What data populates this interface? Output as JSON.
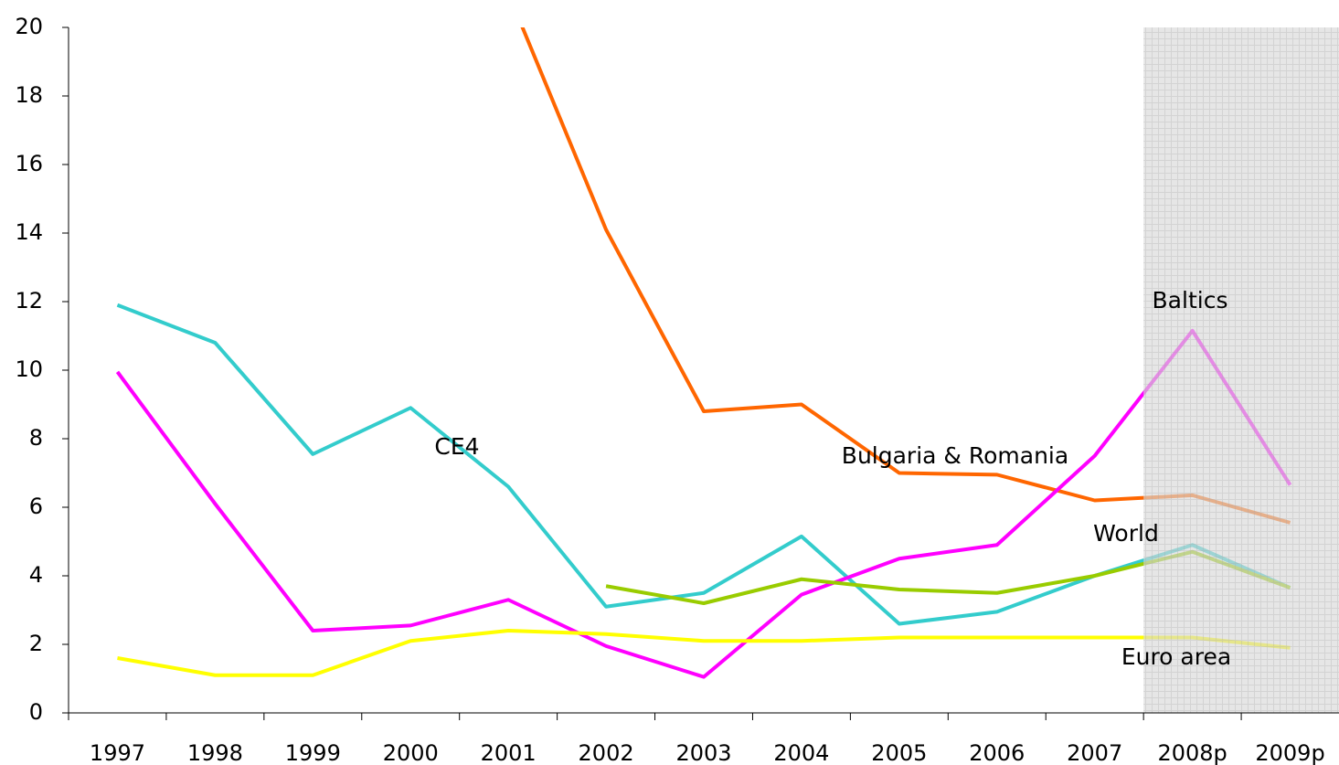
{
  "chart_data": {
    "type": "line",
    "categories": [
      "1997",
      "1998",
      "1999",
      "2000",
      "2001",
      "2002",
      "2003",
      "2004",
      "2005",
      "2006",
      "2007",
      "2008p",
      "2009p"
    ],
    "series": [
      {
        "name": "Bulgaria & Romania",
        "color": "#ff6600",
        "values": [
          null,
          null,
          null,
          null,
          21,
          14.1,
          8.8,
          9.0,
          7.0,
          6.95,
          6.2,
          6.35,
          5.55
        ]
      },
      {
        "name": "CE4",
        "color": "#33cccc",
        "values": [
          11.9,
          10.8,
          7.55,
          8.9,
          6.6,
          3.1,
          3.5,
          5.15,
          2.6,
          2.95,
          4.0,
          4.9,
          3.65
        ]
      },
      {
        "name": "Baltics",
        "color": "#ff00ff",
        "values": [
          9.95,
          6.1,
          2.4,
          2.55,
          3.3,
          1.95,
          1.05,
          3.45,
          4.5,
          4.9,
          7.5,
          11.15,
          6.65
        ]
      },
      {
        "name": "World",
        "color": "#99cc00",
        "values": [
          null,
          null,
          null,
          null,
          null,
          3.7,
          3.2,
          3.9,
          3.6,
          3.5,
          4.0,
          4.7,
          3.65
        ]
      },
      {
        "name": "Euro area",
        "color": "#ffff00",
        "values": [
          1.6,
          1.1,
          1.1,
          2.1,
          2.4,
          2.3,
          2.1,
          2.1,
          2.2,
          2.2,
          2.2,
          2.2,
          1.9
        ]
      }
    ],
    "ylim": [
      0,
      20
    ],
    "yticks": [
      0,
      2,
      4,
      6,
      8,
      10,
      12,
      14,
      16,
      18,
      20
    ],
    "forecast_start": "2008p"
  }
}
